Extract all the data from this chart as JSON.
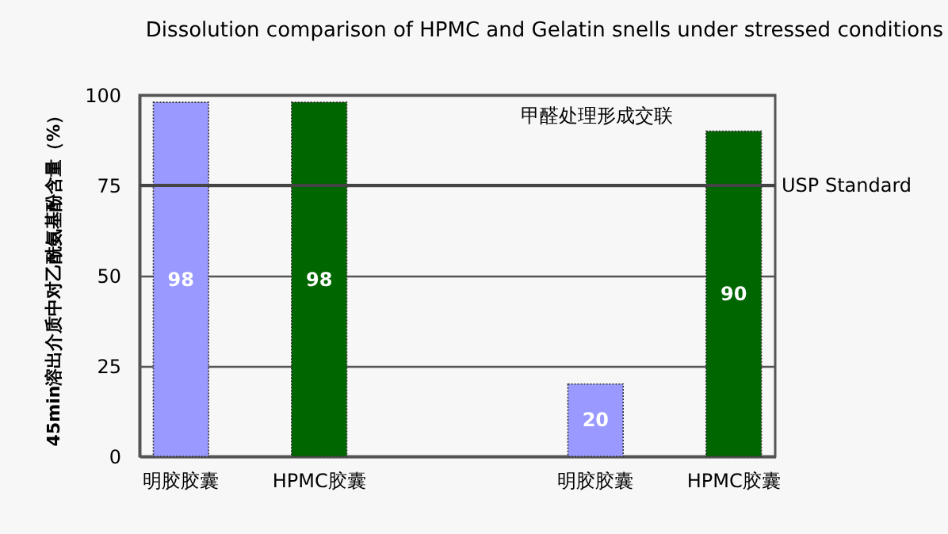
{
  "chart_data": {
    "type": "bar",
    "title": "Dissolution comparison of HPMC and Gelatin snells under stressed conditions",
    "ylabel": "45min溶出介质中对乙酰氨基酚含量（%）",
    "categories": [
      "明胶胶囊",
      "HPMC胶囊",
      null,
      "明胶胶囊",
      "HPMC胶囊"
    ],
    "values": [
      98,
      98,
      null,
      20,
      90
    ],
    "colors": [
      "#9999ff",
      "#006600",
      "#9999ff",
      "#9999ff",
      "#006600"
    ],
    "ylim": [
      0,
      100
    ],
    "yticks": [
      0,
      25,
      50,
      75,
      100
    ],
    "grid": "y",
    "data_labels": true,
    "ref_lines": [
      {
        "axis": "y",
        "value": 75,
        "label": "USP Standard"
      }
    ],
    "annotations": [
      "甲醛处理形成交联"
    ]
  }
}
